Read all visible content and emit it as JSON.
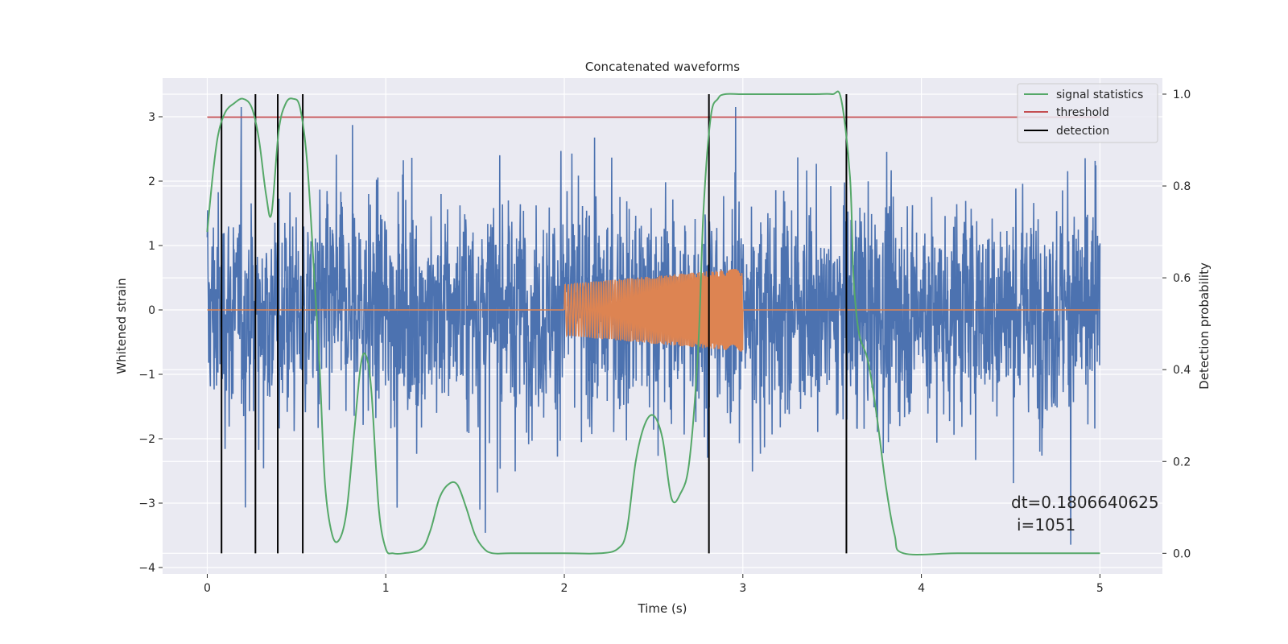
{
  "chart_data": {
    "type": "line",
    "title": "Concatenated waveforms",
    "xlabel": "Time (s)",
    "ylabel": "Whitened strain",
    "y2label": "Detection probability",
    "xlim": [
      -0.25,
      5.35
    ],
    "ylim": [
      -4.1,
      3.6
    ],
    "y2lim": [
      -0.045,
      1.035
    ],
    "xticks": [
      0,
      1,
      2,
      3,
      4,
      5
    ],
    "yticks": [
      -4,
      -3,
      -2,
      -1,
      0,
      1,
      2,
      3
    ],
    "y2ticks": [
      0.0,
      0.2,
      0.4,
      0.6,
      0.8,
      1.0
    ],
    "xtick_labels": [
      "0",
      "1",
      "2",
      "3",
      "4",
      "5"
    ],
    "ytick_labels": [
      "−4",
      "−3",
      "−2",
      "−1",
      "0",
      "1",
      "2",
      "3"
    ],
    "y2tick_labels": [
      "0.0",
      "0.2",
      "0.4",
      "0.6",
      "0.8",
      "1.0"
    ],
    "grid": true,
    "legend_position": "top-right",
    "legend": [
      "signal statistics",
      "threshold",
      "detection"
    ],
    "colors": {
      "noise": "#4c72b0",
      "injection": "#dd8452",
      "signal_statistics": "#55a868",
      "threshold": "#c44e52",
      "detection": "#000000",
      "plot_bg": "#eaeaf2",
      "grid": "#ffffff"
    },
    "noise": {
      "axis": "left",
      "x_range": [
        0,
        5
      ],
      "typical_amplitude": 1.2,
      "min": -3.75,
      "max": 3.15
    },
    "injection": {
      "axis": "left",
      "x_range": [
        0,
        5
      ],
      "chirp_x_range": [
        2,
        3
      ],
      "start_amplitude": 0.4,
      "end_amplitude": 0.65
    },
    "threshold": {
      "axis": "right",
      "value": 0.95,
      "x": [
        0,
        5
      ]
    },
    "detections": {
      "x": [
        0.08,
        0.27,
        0.395,
        0.535,
        2.81,
        3.58
      ],
      "y_top": 1.0,
      "y_bottom": 0.0
    },
    "signal_statistics": {
      "axis": "right",
      "x": [
        0.0,
        0.03,
        0.06,
        0.1,
        0.15,
        0.2,
        0.25,
        0.29,
        0.33,
        0.36,
        0.4,
        0.44,
        0.48,
        0.52,
        0.56,
        0.6,
        0.63,
        0.66,
        0.7,
        0.74,
        0.78,
        0.82,
        0.86,
        0.89,
        0.92,
        0.96,
        1.0,
        1.04,
        1.1,
        1.2,
        1.25,
        1.3,
        1.35,
        1.4,
        1.45,
        1.5,
        1.55,
        1.6,
        1.7,
        2.0,
        2.2,
        2.3,
        2.35,
        2.4,
        2.45,
        2.5,
        2.55,
        2.6,
        2.65,
        2.7,
        2.75,
        2.78,
        2.82,
        2.86,
        2.9,
        3.0,
        3.2,
        3.4,
        3.5,
        3.55,
        3.6,
        3.62,
        3.65,
        3.7,
        3.75,
        3.8,
        3.85,
        3.9,
        4.2,
        4.6,
        5.0
      ],
      "y": [
        0.7,
        0.82,
        0.91,
        0.96,
        0.98,
        0.99,
        0.97,
        0.9,
        0.78,
        0.74,
        0.92,
        0.98,
        0.99,
        0.97,
        0.85,
        0.6,
        0.4,
        0.15,
        0.04,
        0.03,
        0.09,
        0.25,
        0.41,
        0.43,
        0.35,
        0.1,
        0.01,
        0.0,
        0.0,
        0.01,
        0.05,
        0.12,
        0.15,
        0.15,
        0.1,
        0.04,
        0.01,
        0.0,
        0.0,
        0.0,
        0.0,
        0.01,
        0.05,
        0.2,
        0.28,
        0.3,
        0.25,
        0.12,
        0.13,
        0.2,
        0.45,
        0.75,
        0.95,
        0.99,
        1.0,
        1.0,
        1.0,
        1.0,
        1.0,
        0.99,
        0.82,
        0.6,
        0.48,
        0.42,
        0.3,
        0.15,
        0.04,
        0.0,
        0.0,
        0.0,
        0.0
      ]
    },
    "annotations": [
      "dt=0.1806640625",
      "i=1051"
    ]
  }
}
